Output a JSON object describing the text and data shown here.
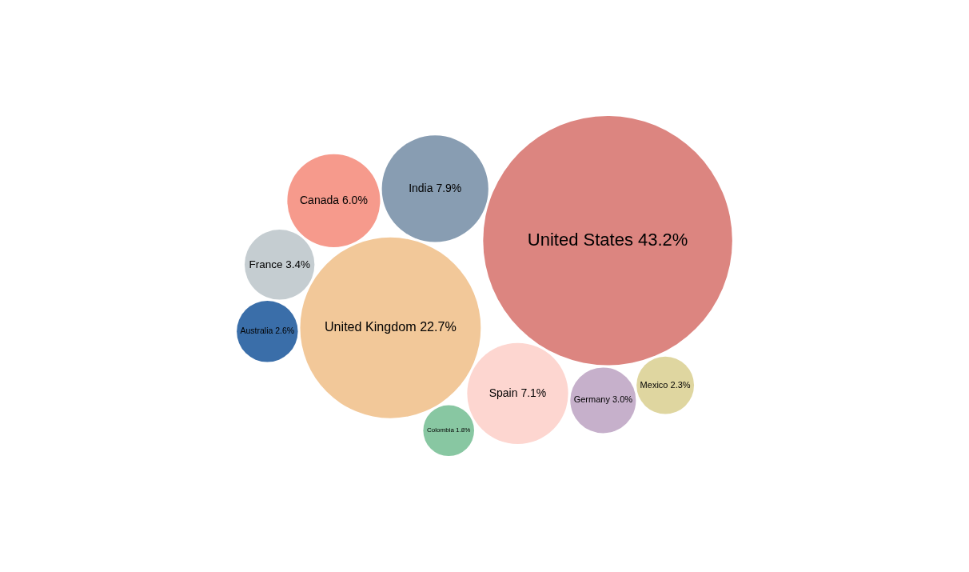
{
  "chart_data": {
    "type": "other",
    "categories": [
      "United States",
      "United Kingdom",
      "India",
      "Spain",
      "Canada",
      "France",
      "Germany",
      "Australia",
      "Mexico",
      "Colombia"
    ],
    "values": [
      43.2,
      22.7,
      7.9,
      7.1,
      6.0,
      3.4,
      3.0,
      2.6,
      2.3,
      1.8
    ],
    "value_labels": [
      "43.2%",
      "22.7%",
      "7.9%",
      "7.1%",
      "6.0%",
      "3.4%",
      "3.0%",
      "2.6%",
      "2.3%",
      "1.8%"
    ],
    "colors": [
      "#dc8580",
      "#f2c899",
      "#889db2",
      "#fdd6d0",
      "#f69a8c",
      "#c5cdd1",
      "#c6b0cb",
      "#3a6ea9",
      "#dfd6a0",
      "#88c7a2"
    ]
  }
}
